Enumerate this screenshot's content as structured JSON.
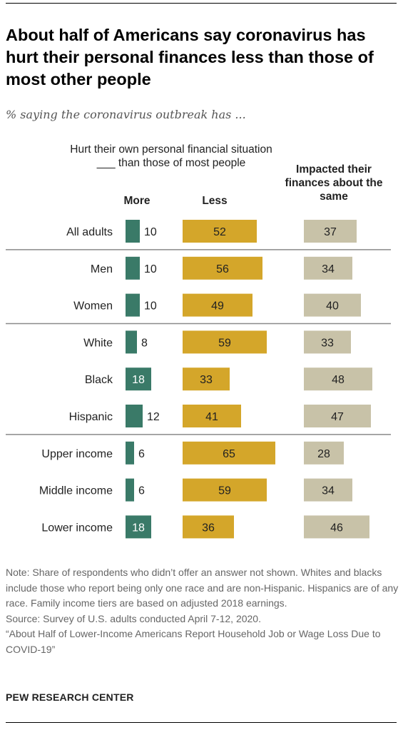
{
  "chart_data": {
    "type": "bar",
    "title": "About half of Americans say coronavirus has hurt their personal finances less than those of most other people",
    "subtitle": "% saying the coronavirus outbreak has ...",
    "header_description": "Hurt their own personal financial situation ___ than those of most people",
    "categories": [
      "All adults",
      "Men",
      "Women",
      "White",
      "Black",
      "Hispanic",
      "Upper income",
      "Middle income",
      "Lower income"
    ],
    "groups": [
      [
        "All adults"
      ],
      [
        "Men",
        "Women"
      ],
      [
        "White",
        "Black",
        "Hispanic"
      ],
      [
        "Upper income",
        "Middle income",
        "Lower income"
      ]
    ],
    "series": [
      {
        "name": "More",
        "color": "#3a7a68",
        "values": [
          10,
          10,
          10,
          8,
          18,
          12,
          6,
          6,
          18
        ]
      },
      {
        "name": "Less",
        "color": "#d4a62a",
        "values": [
          52,
          56,
          49,
          59,
          33,
          41,
          65,
          59,
          36
        ]
      },
      {
        "name": "Impacted their finances about the same",
        "color": "#c8c2a8",
        "values": [
          37,
          34,
          40,
          33,
          48,
          47,
          28,
          34,
          46
        ]
      }
    ]
  },
  "notes": [
    "Note: Share of respondents who didn’t offer an answer not shown. Whites and blacks include those who report being only one race and are non-Hispanic. Hispanics are of any race. Family income tiers are based on adjusted 2018 earnings.",
    "Source: Survey of U.S. adults conducted April 7-12, 2020.",
    "“About Half of Lower-Income Americans Report Household Job or Wage Loss Due to COVID-19”"
  ],
  "source_org": "PEW RESEARCH CENTER"
}
